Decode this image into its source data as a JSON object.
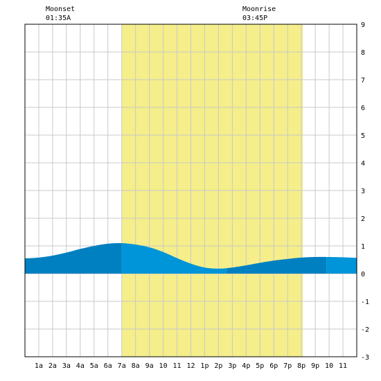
{
  "moon": {
    "moonset_label": "Moonset",
    "moonset_time": "01:35A",
    "moonrise_label": "Moonrise",
    "moonrise_time": "03:45P"
  },
  "colors": {
    "daylight": "#f5ee8a",
    "night_tide": "#0080c0",
    "day_tide": "#0094d8",
    "grid": "#c8c8c8",
    "border": "#000000"
  },
  "chart_data": {
    "type": "area",
    "title": "",
    "xlabel": "",
    "ylabel": "",
    "xlim": [
      0,
      24
    ],
    "ylim": [
      -3,
      9
    ],
    "grid": true,
    "x_tick_labels": [
      "1a",
      "2a",
      "3a",
      "4a",
      "5a",
      "6a",
      "7a",
      "8a",
      "9a",
      "10",
      "11",
      "12",
      "1p",
      "2p",
      "3p",
      "4p",
      "5p",
      "6p",
      "7p",
      "8p",
      "9p",
      "10",
      "11"
    ],
    "y_tick_labels": [
      "-3",
      "-2",
      "-1",
      "0",
      "1",
      "2",
      "3",
      "4",
      "5",
      "6",
      "7",
      "8",
      "9"
    ],
    "daylight_hours": [
      7.0,
      20.1
    ],
    "shading_segments": [
      {
        "start": 0,
        "end": 7.0,
        "period": "night"
      },
      {
        "start": 7.0,
        "end": 14.6,
        "period": "day"
      },
      {
        "start": 14.6,
        "end": 21.8,
        "period": "night"
      },
      {
        "start": 21.8,
        "end": 24,
        "period": "day"
      }
    ],
    "series": [
      {
        "x": [
          0,
          1,
          2,
          3,
          4,
          5,
          6,
          7,
          8,
          9,
          10,
          11,
          12,
          13,
          14,
          15,
          16,
          17,
          18,
          19,
          20,
          21,
          22,
          23,
          24
        ],
        "values": [
          0.55,
          0.58,
          0.65,
          0.76,
          0.89,
          1.0,
          1.08,
          1.1,
          1.05,
          0.95,
          0.78,
          0.56,
          0.36,
          0.22,
          0.18,
          0.22,
          0.3,
          0.39,
          0.47,
          0.53,
          0.58,
          0.6,
          0.6,
          0.59,
          0.57
        ]
      }
    ]
  }
}
